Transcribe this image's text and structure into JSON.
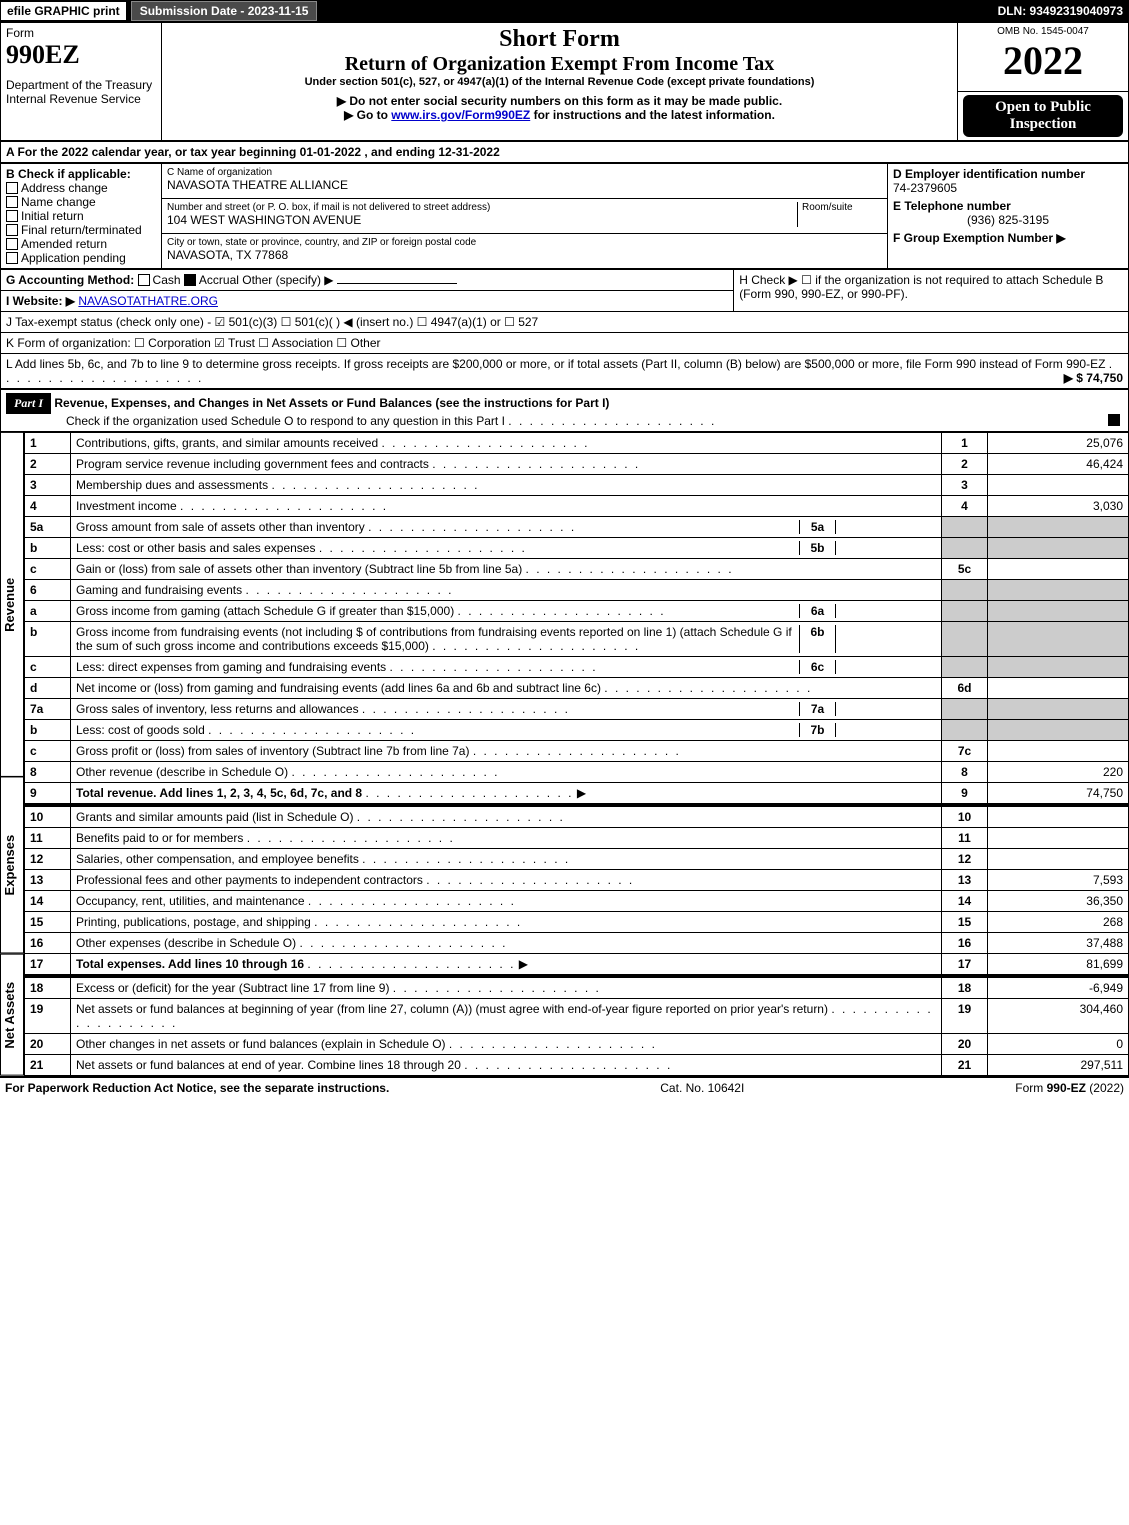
{
  "top_bar": {
    "efile": "efile GRAPHIC print",
    "submission": "Submission Date - 2023-11-15",
    "dln": "DLN: 93492319040973"
  },
  "header": {
    "form_word": "Form",
    "form_number": "990EZ",
    "department": "Department of the Treasury\nInternal Revenue Service",
    "title": "Short Form",
    "subtitle": "Return of Organization Exempt From Income Tax",
    "under_section": "Under section 501(c), 527, or 4947(a)(1) of the Internal Revenue Code (except private foundations)",
    "no_ssn": "▶ Do not enter social security numbers on this form as it may be made public.",
    "goto": "▶ Go to www.irs.gov/Form990EZ for instructions and the latest information.",
    "goto_url": "www.irs.gov/Form990EZ",
    "omb": "OMB No. 1545-0047",
    "year": "2022",
    "open_public": "Open to Public Inspection"
  },
  "section_a": "A  For the 2022 calendar year, or tax year beginning 01-01-2022 , and ending 12-31-2022",
  "section_b": {
    "label": "B  Check if applicable:",
    "options": [
      "Address change",
      "Name change",
      "Initial return",
      "Final return/terminated",
      "Amended return",
      "Application pending"
    ]
  },
  "section_c": {
    "name_label": "C Name of organization",
    "name": "NAVASOTA THEATRE ALLIANCE",
    "street_label": "Number and street (or P. O. box, if mail is not delivered to street address)",
    "room_label": "Room/suite",
    "street": "104 WEST WASHINGTON AVENUE",
    "city_label": "City or town, state or province, country, and ZIP or foreign postal code",
    "city": "NAVASOTA, TX  77868"
  },
  "section_d": {
    "label": "D Employer identification number",
    "value": "74-2379605"
  },
  "section_e": {
    "label": "E Telephone number",
    "value": "(936) 825-3195"
  },
  "section_f": {
    "label": "F Group Exemption Number  ▶",
    "value": ""
  },
  "section_g": {
    "label": "G Accounting Method:",
    "cash": "Cash",
    "accrual": "Accrual",
    "other": "Other (specify) ▶"
  },
  "section_h": "H  Check ▶  ☐  if the organization is not required to attach Schedule B (Form 990, 990-EZ, or 990-PF).",
  "section_i": {
    "label": "I Website: ▶",
    "value": "NAVASOTATHATRE.ORG"
  },
  "section_j": "J Tax-exempt status (check only one) -  ☑ 501(c)(3)  ☐ 501(c)(  ) ◀ (insert no.)  ☐ 4947(a)(1) or  ☐ 527",
  "section_k": "K Form of organization:   ☐ Corporation   ☑ Trust   ☐ Association   ☐ Other",
  "section_l": {
    "text": "L Add lines 5b, 6c, and 7b to line 9 to determine gross receipts. If gross receipts are $200,000 or more, or if total assets (Part II, column (B) below) are $500,000 or more, file Form 990 instead of Form 990-EZ",
    "value": "▶ $ 74,750"
  },
  "part1": {
    "header": "Part I",
    "title": "Revenue, Expenses, and Changes in Net Assets or Fund Balances (see the instructions for Part I)",
    "check_line": "Check if the organization used Schedule O to respond to any question in this Part I",
    "checked": true
  },
  "side_labels": {
    "revenue": "Revenue",
    "expenses": "Expenses",
    "netassets": "Net Assets"
  },
  "lines": [
    {
      "n": "1",
      "desc": "Contributions, gifts, grants, and similar amounts received",
      "ln": "1",
      "amt": "25,076"
    },
    {
      "n": "2",
      "desc": "Program service revenue including government fees and contracts",
      "ln": "2",
      "amt": "46,424"
    },
    {
      "n": "3",
      "desc": "Membership dues and assessments",
      "ln": "3",
      "amt": ""
    },
    {
      "n": "4",
      "desc": "Investment income",
      "ln": "4",
      "amt": "3,030"
    },
    {
      "n": "5a",
      "desc": "Gross amount from sale of assets other than inventory",
      "sub": "5a",
      "subamt": "",
      "grey": true
    },
    {
      "n": "b",
      "desc": "Less: cost or other basis and sales expenses",
      "sub": "5b",
      "subamt": "",
      "grey": true
    },
    {
      "n": "c",
      "desc": "Gain or (loss) from sale of assets other than inventory (Subtract line 5b from line 5a)",
      "ln": "5c",
      "amt": ""
    },
    {
      "n": "6",
      "desc": "Gaming and fundraising events",
      "grey": true,
      "noln": true
    },
    {
      "n": "a",
      "desc": "Gross income from gaming (attach Schedule G if greater than $15,000)",
      "sub": "6a",
      "subamt": "",
      "grey": true
    },
    {
      "n": "b",
      "desc": "Gross income from fundraising events (not including $                   of contributions from fundraising events reported on line 1) (attach Schedule G if the sum of such gross income and contributions exceeds $15,000)",
      "sub": "6b",
      "subamt": "",
      "grey": true
    },
    {
      "n": "c",
      "desc": "Less: direct expenses from gaming and fundraising events",
      "sub": "6c",
      "subamt": "",
      "grey": true
    },
    {
      "n": "d",
      "desc": "Net income or (loss) from gaming and fundraising events (add lines 6a and 6b and subtract line 6c)",
      "ln": "6d",
      "amt": ""
    },
    {
      "n": "7a",
      "desc": "Gross sales of inventory, less returns and allowances",
      "sub": "7a",
      "subamt": "",
      "grey": true
    },
    {
      "n": "b",
      "desc": "Less: cost of goods sold",
      "sub": "7b",
      "subamt": "",
      "grey": true
    },
    {
      "n": "c",
      "desc": "Gross profit or (loss) from sales of inventory (Subtract line 7b from line 7a)",
      "ln": "7c",
      "amt": ""
    },
    {
      "n": "8",
      "desc": "Other revenue (describe in Schedule O)",
      "ln": "8",
      "amt": "220"
    },
    {
      "n": "9",
      "desc": "Total revenue. Add lines 1, 2, 3, 4, 5c, 6d, 7c, and 8",
      "ln": "9",
      "amt": "74,750",
      "bold": true,
      "arrow": true
    }
  ],
  "expense_lines": [
    {
      "n": "10",
      "desc": "Grants and similar amounts paid (list in Schedule O)",
      "ln": "10",
      "amt": ""
    },
    {
      "n": "11",
      "desc": "Benefits paid to or for members",
      "ln": "11",
      "amt": ""
    },
    {
      "n": "12",
      "desc": "Salaries, other compensation, and employee benefits",
      "ln": "12",
      "amt": ""
    },
    {
      "n": "13",
      "desc": "Professional fees and other payments to independent contractors",
      "ln": "13",
      "amt": "7,593"
    },
    {
      "n": "14",
      "desc": "Occupancy, rent, utilities, and maintenance",
      "ln": "14",
      "amt": "36,350"
    },
    {
      "n": "15",
      "desc": "Printing, publications, postage, and shipping",
      "ln": "15",
      "amt": "268"
    },
    {
      "n": "16",
      "desc": "Other expenses (describe in Schedule O)",
      "ln": "16",
      "amt": "37,488"
    },
    {
      "n": "17",
      "desc": "Total expenses. Add lines 10 through 16",
      "ln": "17",
      "amt": "81,699",
      "bold": true,
      "arrow": true
    }
  ],
  "netasset_lines": [
    {
      "n": "18",
      "desc": "Excess or (deficit) for the year (Subtract line 17 from line 9)",
      "ln": "18",
      "amt": "-6,949"
    },
    {
      "n": "19",
      "desc": "Net assets or fund balances at beginning of year (from line 27, column (A)) (must agree with end-of-year figure reported on prior year's return)",
      "ln": "19",
      "amt": "304,460"
    },
    {
      "n": "20",
      "desc": "Other changes in net assets or fund balances (explain in Schedule O)",
      "ln": "20",
      "amt": "0"
    },
    {
      "n": "21",
      "desc": "Net assets or fund balances at end of year. Combine lines 18 through 20",
      "ln": "21",
      "amt": "297,511"
    }
  ],
  "footer": {
    "left": "For Paperwork Reduction Act Notice, see the separate instructions.",
    "center": "Cat. No. 10642I",
    "right": "Form 990-EZ (2022)"
  }
}
